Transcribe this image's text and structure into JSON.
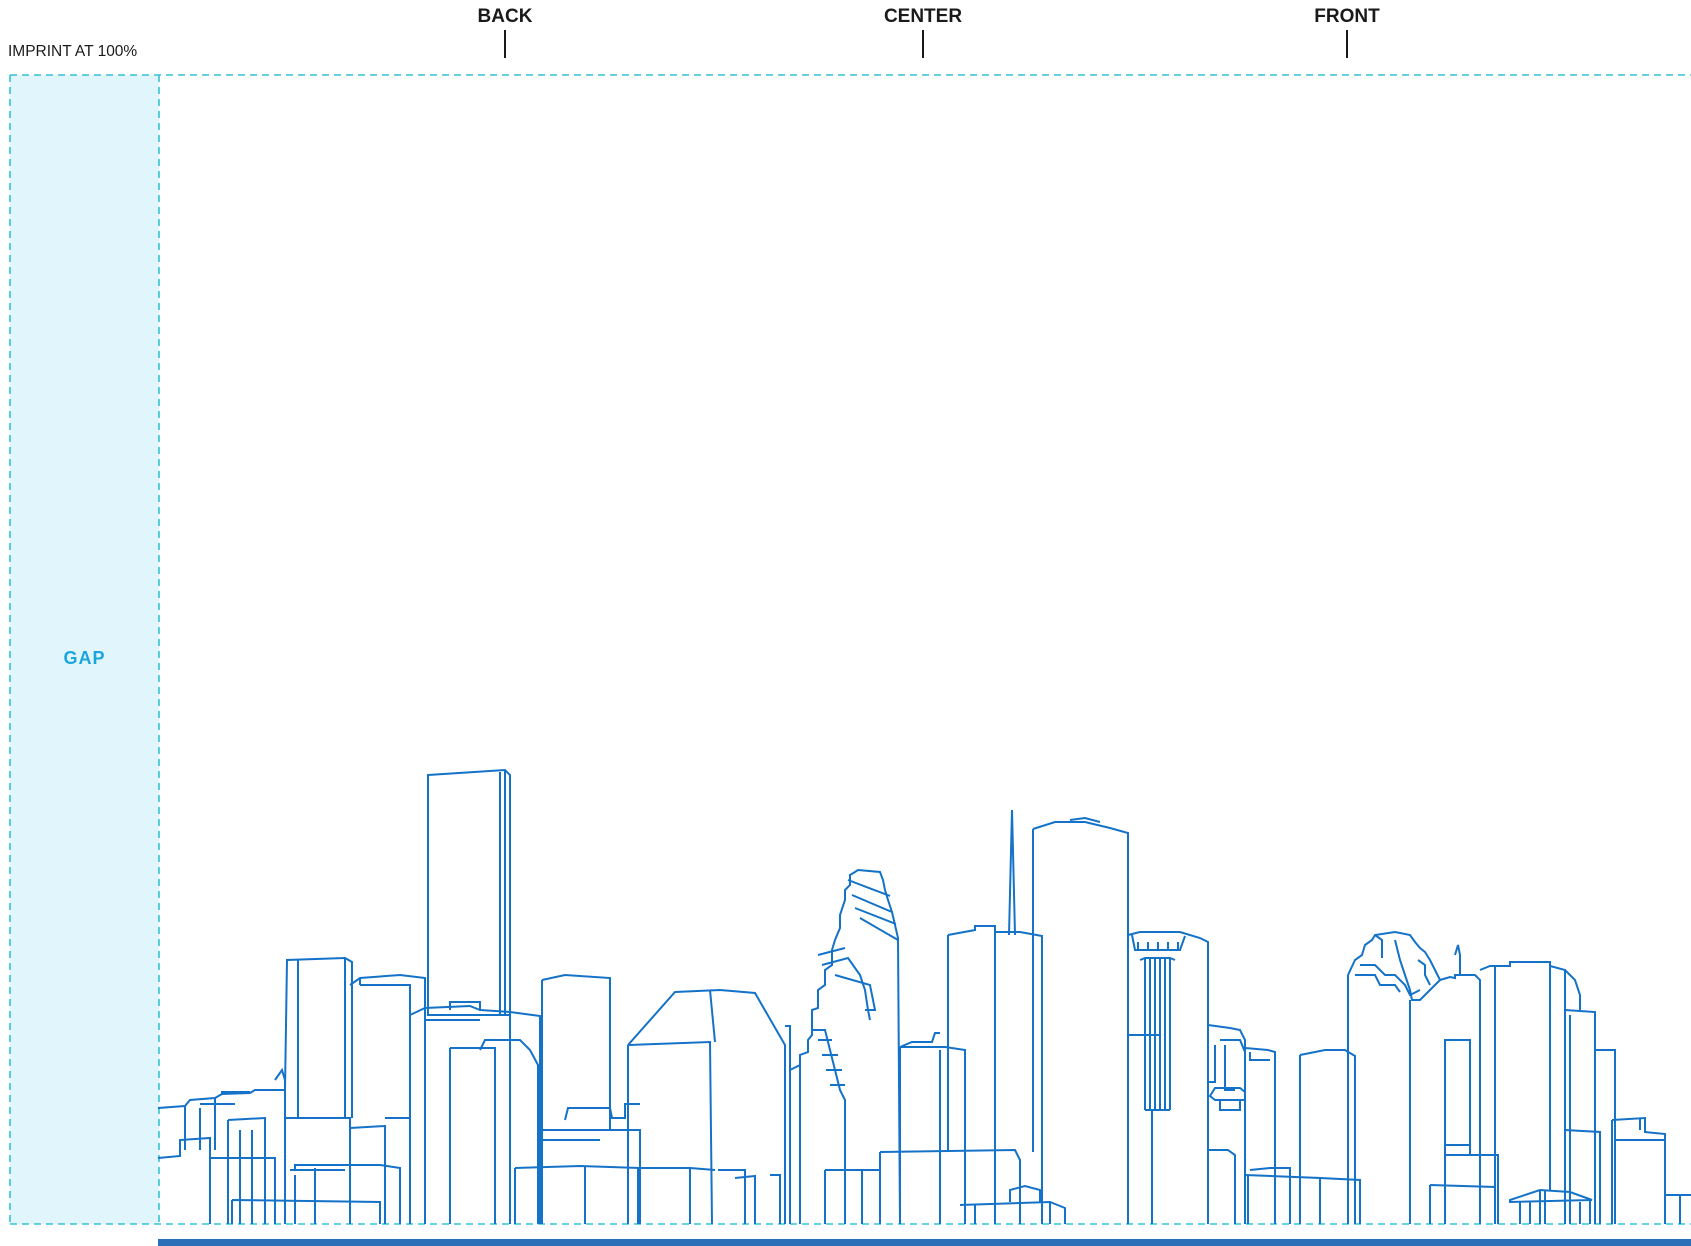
{
  "template": {
    "imprint_label": "IMPRINT AT 100%",
    "gap_label": "GAP",
    "guides": {
      "back": "BACK",
      "center": "CENTER",
      "front": "FRONT"
    },
    "colors": {
      "guide_dash": "#33c2d6",
      "gap_fill": "#e1f5fc",
      "gap_text": "#1aa6dc",
      "artwork_stroke": "#1472c8",
      "bottom_bar": "#2a6fb8"
    },
    "artwork": "city-skyline-line-art"
  }
}
